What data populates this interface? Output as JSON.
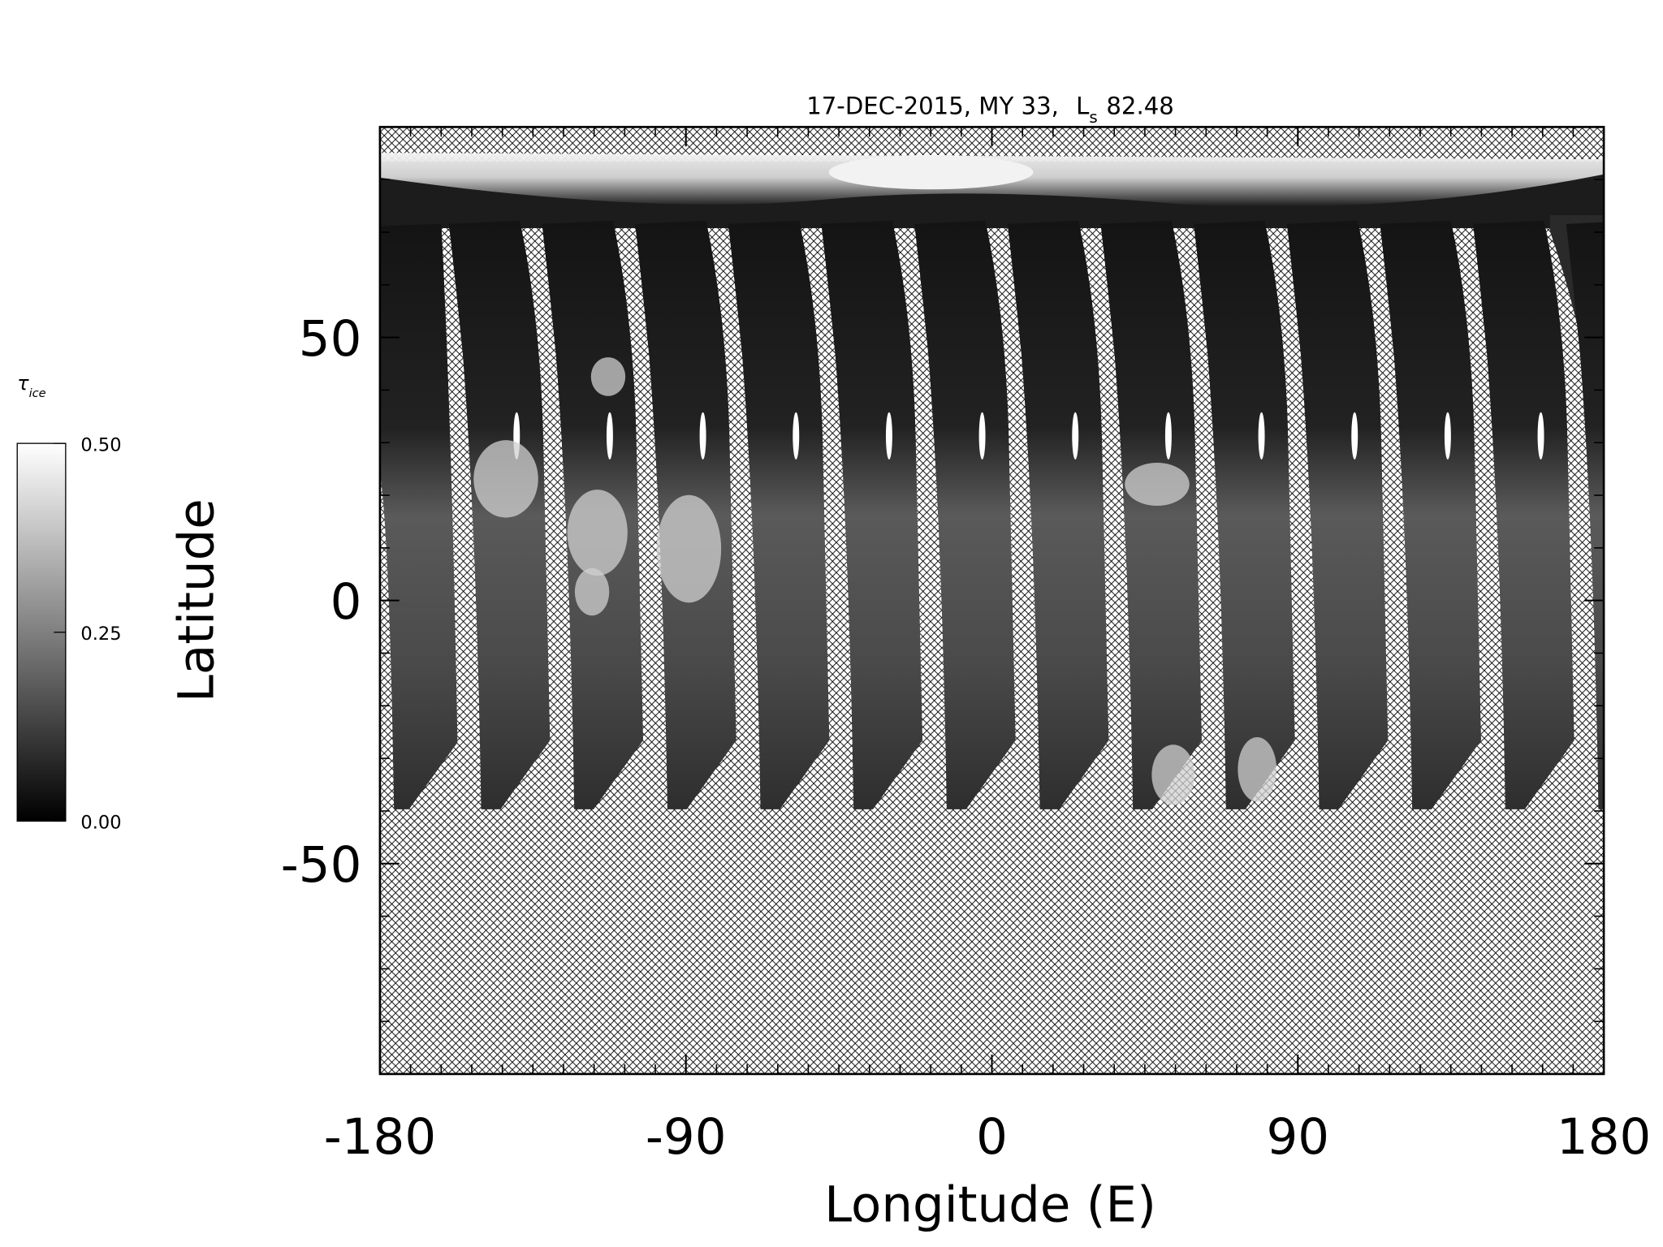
{
  "chart_data": {
    "type": "map",
    "title": {
      "prefix": "17-DEC-2015, MY 33,",
      "symbol": "L",
      "subscript": "s",
      "value": "82.48"
    },
    "xlabel": "Longitude (E)",
    "ylabel": "Latitude",
    "xlim": [
      -180,
      180
    ],
    "xticks": [
      -180,
      -90,
      0,
      90,
      180
    ],
    "ylim": [
      -90,
      90
    ],
    "yticks": [
      -50,
      0,
      50
    ],
    "x_minor_step": 9,
    "y_minor_step": 10,
    "colorbar": {
      "label": "τ",
      "label_subscript": "ice",
      "lim": [
        0,
        0.5
      ],
      "ticks": [
        {
          "value": 0,
          "label": "0.00"
        },
        {
          "value": 0.25,
          "label": "0.25"
        },
        {
          "value": 0.5,
          "label": "0.50"
        }
      ]
    }
  }
}
